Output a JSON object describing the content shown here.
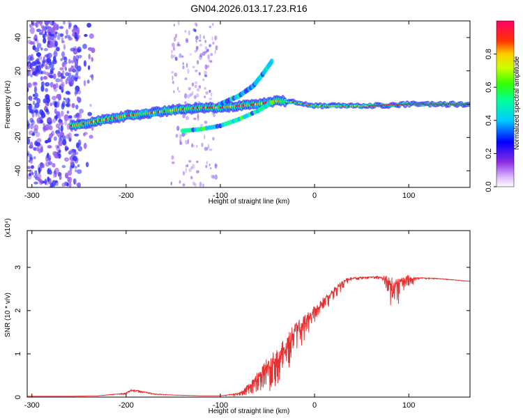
{
  "title": "GN04.2026.013.17.23.R16",
  "colors": {
    "snr_line": "#e83030",
    "blob_low": "#9a60f0",
    "axis": "#000000"
  },
  "chart_data": [
    {
      "type": "heatmap",
      "xlabel": "Height of straight line (km)",
      "ylabel": "Frequency (Hz)",
      "xlim": [
        -305,
        165
      ],
      "ylim": [
        -50,
        50
      ],
      "x_ticks": [
        -300,
        -200,
        -100,
        0,
        100
      ],
      "x_tick_labels": [
        "-300",
        "-200",
        "-100",
        "0",
        "100"
      ],
      "y_ticks": [
        -40,
        -20,
        0,
        20,
        40
      ],
      "y_tick_labels": [
        "-40",
        "-20",
        "0",
        "20",
        "40"
      ],
      "colorbar": {
        "label": "Normalized spectral amplitude",
        "range": [
          0,
          1
        ],
        "ticks": [
          0.0,
          0.2,
          0.4,
          0.6,
          0.8
        ],
        "tick_labels": [
          "0.0",
          "0.2",
          "0.4",
          "0.6",
          "0.8"
        ]
      },
      "main_ridge": [
        [
          -255,
          -13
        ],
        [
          -230,
          -10
        ],
        [
          -200,
          -7
        ],
        [
          -170,
          -5
        ],
        [
          -140,
          -3
        ],
        [
          -120,
          -2
        ],
        [
          -100,
          -2
        ],
        [
          -80,
          -1
        ],
        [
          -60,
          0
        ],
        [
          -40,
          2
        ],
        [
          -20,
          1
        ],
        [
          0,
          -1
        ],
        [
          30,
          -1
        ],
        [
          60,
          -1
        ],
        [
          100,
          0
        ],
        [
          165,
          0
        ]
      ],
      "rising_branch": [
        [
          -100,
          0
        ],
        [
          -80,
          5
        ],
        [
          -65,
          11
        ],
        [
          -55,
          18
        ],
        [
          -45,
          26
        ]
      ],
      "lower_branch": [
        [
          -140,
          -16
        ],
        [
          -120,
          -15
        ],
        [
          -100,
          -13
        ],
        [
          -80,
          -9
        ],
        [
          -60,
          -4
        ],
        [
          -45,
          1
        ]
      ],
      "scatter_region": {
        "x": [
          -305,
          -235
        ],
        "y": [
          -50,
          50
        ]
      }
    },
    {
      "type": "line",
      "xlabel": "Height of straight line (km)",
      "ylabel": "SNR (10 * v/v)",
      "y_multiplier": "(x10⁴)",
      "xlim": [
        -305,
        165
      ],
      "ylim": [
        0,
        3.85
      ],
      "x_ticks": [
        -300,
        -200,
        -100,
        0,
        100
      ],
      "x_tick_labels": [
        "-300",
        "-200",
        "-100",
        "0",
        "100"
      ],
      "y_ticks": [
        0,
        1,
        2,
        3
      ],
      "y_tick_labels": [
        "0",
        "1",
        "2",
        "3"
      ],
      "series": [
        {
          "name": "SNR",
          "x": [
            -305,
            -260,
            -230,
            -200,
            -195,
            -185,
            -170,
            -150,
            -120,
            -100,
            -80,
            -70,
            -60,
            -50,
            -40,
            -30,
            -20,
            -10,
            0,
            10,
            20,
            30,
            35,
            40,
            50,
            60,
            70,
            80,
            82,
            85,
            90,
            95,
            100,
            110,
            130,
            165
          ],
          "y": [
            0.02,
            0.02,
            0.03,
            0.1,
            0.18,
            0.15,
            0.08,
            0.05,
            0.03,
            0.03,
            0.1,
            0.3,
            0.6,
            0.9,
            1.15,
            1.4,
            1.7,
            1.9,
            2.1,
            2.3,
            2.5,
            2.7,
            2.75,
            2.77,
            2.78,
            2.79,
            2.8,
            2.8,
            2.85,
            2.78,
            2.8,
            2.82,
            2.8,
            2.77,
            2.75,
            2.68
          ],
          "noise": [
            0,
            0,
            0,
            0.04,
            0.06,
            0.05,
            0.03,
            0.01,
            0,
            0,
            0.08,
            0.25,
            0.5,
            0.75,
            0.85,
            0.85,
            0.7,
            0.55,
            0.4,
            0.3,
            0.28,
            0.2,
            0.15,
            0.08,
            0.05,
            0.05,
            0.08,
            0.5,
            1.3,
            1.1,
            0.5,
            0.35,
            0.3,
            0.05,
            0.02,
            0.01
          ]
        }
      ]
    }
  ]
}
